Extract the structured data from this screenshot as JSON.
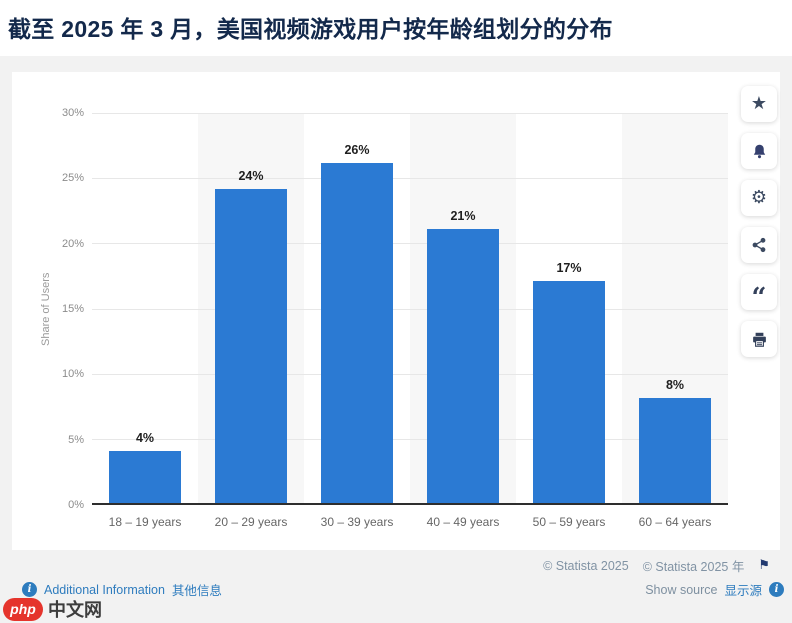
{
  "header": {
    "title": "截至 2025 年 3 月，美国视频游戏用户按年龄组划分的分布"
  },
  "chart_data": {
    "type": "bar",
    "categories": [
      "18 – 19 years",
      "20 – 29 years",
      "30 – 39 years",
      "40 – 49 years",
      "50 – 59 years",
      "60 – 64 years"
    ],
    "values": [
      4,
      24,
      26,
      21,
      17,
      8
    ],
    "value_labels": [
      "4%",
      "24%",
      "26%",
      "21%",
      "17%",
      "8%"
    ],
    "title": "",
    "xlabel": "",
    "ylabel": "Share of Users",
    "ylim": [
      0,
      30
    ],
    "yticks": [
      0,
      5,
      10,
      15,
      20,
      25,
      30
    ],
    "ytick_labels": [
      "0%",
      "5%",
      "10%",
      "15%",
      "20%",
      "25%",
      "30%"
    ],
    "grid": true,
    "legend": "none",
    "bar_color": "#2b7ad3",
    "band_color": "#f7f7f7"
  },
  "toolbar": {
    "icons": [
      "star-icon",
      "bell-icon",
      "gear-icon",
      "share-icon",
      "quote-icon",
      "print-icon"
    ],
    "star_glyph": "★",
    "gear_glyph": "⚙",
    "quote_glyph": "“"
  },
  "footer": {
    "copyright_en": "© Statista 2025",
    "copyright_zh": "© Statista 2025 年",
    "flag_glyph": "⚑",
    "additional_info_en": "Additional Information",
    "additional_info_zh": "其他信息",
    "show_source_en": "Show source",
    "show_source_zh": "显示源",
    "info_glyph": "i"
  },
  "logo": {
    "badge": "php",
    "text": "中文网"
  }
}
